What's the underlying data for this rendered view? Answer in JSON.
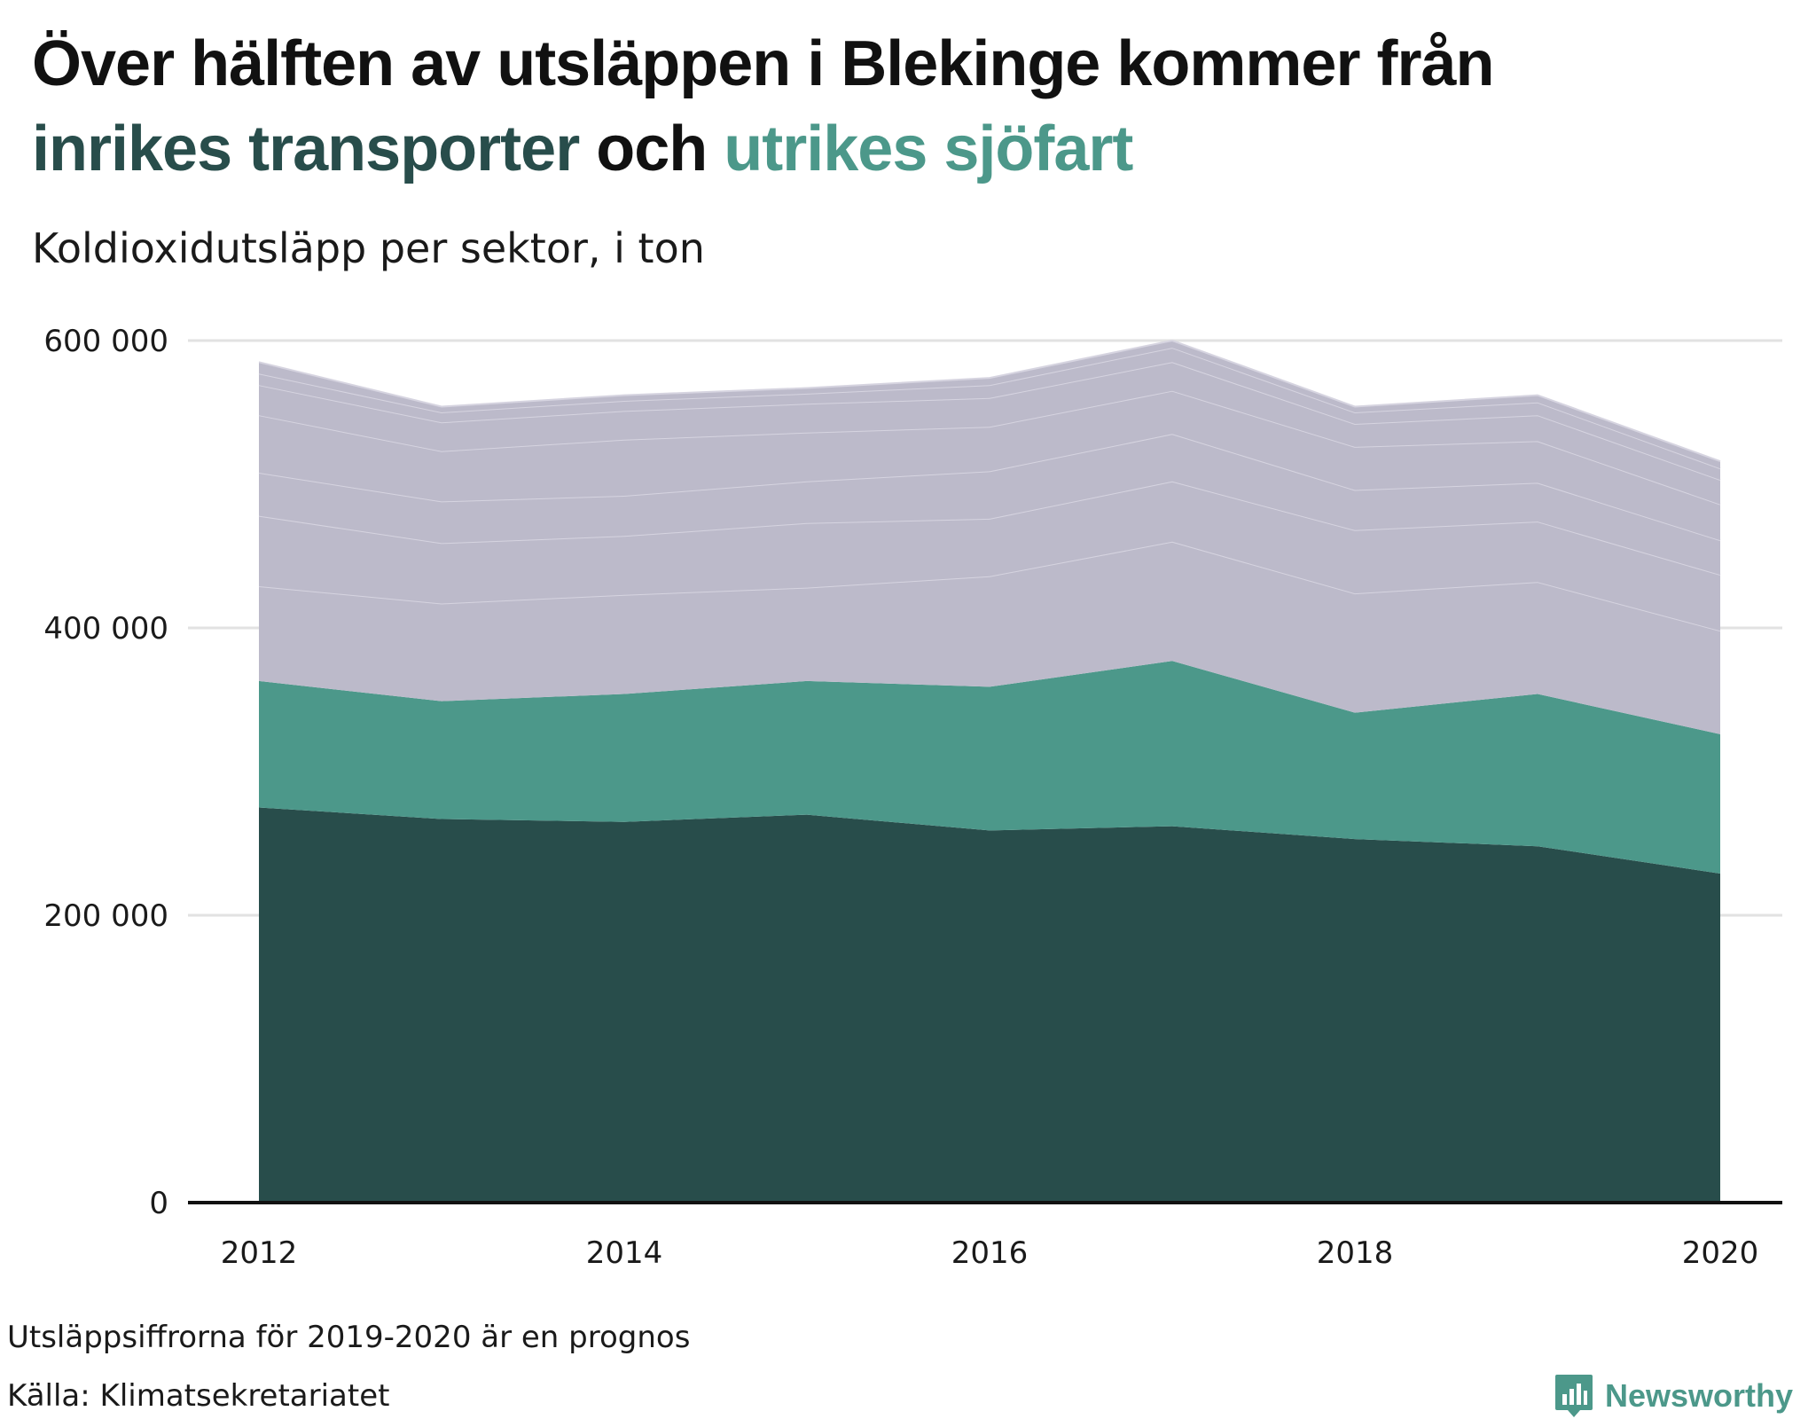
{
  "headline": {
    "line1": "Över hälften av utsläppen i Blekinge kommer från",
    "highlight1": "inrikes transporter",
    "connector": " och ",
    "highlight2": "utrikes sjöfart"
  },
  "subtitle": "Koldioxidutsläpp per sektor, i ton",
  "footer": {
    "note": "Utsläppsiffrorna för 2019-2020 är en prognos",
    "source": "Källa: Klimatsekretariatet",
    "brand": "Newsworthy"
  },
  "colors": {
    "inrikes_transporter": "#284d4b",
    "utrikes_sjofart": "#4c988a",
    "other_sectors": "#bcbaca",
    "other_sector_lines": "#d6d4e0",
    "gridline": "#e2e2e2",
    "baseline": "#111111"
  },
  "chart_data": {
    "type": "area",
    "stacked": true,
    "title": "Koldioxidutsläpp per sektor, i ton",
    "x": [
      2012,
      2013,
      2014,
      2015,
      2016,
      2017,
      2018,
      2019,
      2020
    ],
    "x_ticks": [
      2012,
      2014,
      2016,
      2018,
      2020
    ],
    "x_tick_labels": [
      "2012",
      "2014",
      "2016",
      "2018",
      "2020"
    ],
    "ylim": [
      0,
      600000
    ],
    "y_ticks": [
      0,
      200000,
      400000,
      600000
    ],
    "y_tick_labels": [
      "0",
      "200 000",
      "400 000",
      "600 000"
    ],
    "grid": true,
    "legend": "none",
    "series": [
      {
        "name": "inrikes transporter",
        "color": "#284d4b",
        "values": [
          275000,
          267000,
          265000,
          270000,
          259000,
          262000,
          253000,
          248000,
          229000
        ]
      },
      {
        "name": "utrikes sjöfart",
        "color": "#4c988a",
        "values": [
          88000,
          82000,
          89000,
          93000,
          100000,
          115000,
          88000,
          106000,
          97000
        ]
      },
      {
        "color": "#bcbaca",
        "values": [
          66000,
          68000,
          69000,
          65000,
          77000,
          83000,
          83000,
          78000,
          72000
        ]
      },
      {
        "color": "#bcbaca",
        "values": [
          49000,
          42000,
          41000,
          45000,
          40000,
          42000,
          44000,
          42000,
          39000
        ]
      },
      {
        "color": "#bcbaca",
        "values": [
          30000,
          29000,
          28000,
          29000,
          33000,
          33000,
          28000,
          27000,
          24000
        ]
      },
      {
        "color": "#bcbaca",
        "values": [
          40000,
          35000,
          39000,
          34000,
          31000,
          30000,
          30000,
          29000,
          25000
        ]
      },
      {
        "color": "#bcbaca",
        "values": [
          21000,
          20000,
          20000,
          20000,
          20000,
          20000,
          16000,
          18000,
          17000
        ]
      },
      {
        "color": "#bcbaca",
        "values": [
          8000,
          7000,
          7000,
          7000,
          9000,
          10000,
          8000,
          9000,
          8000
        ]
      },
      {
        "color": "#bcbaca",
        "values": [
          8000,
          4000,
          4000,
          4000,
          5000,
          5000,
          4000,
          5000,
          5000
        ]
      }
    ]
  }
}
